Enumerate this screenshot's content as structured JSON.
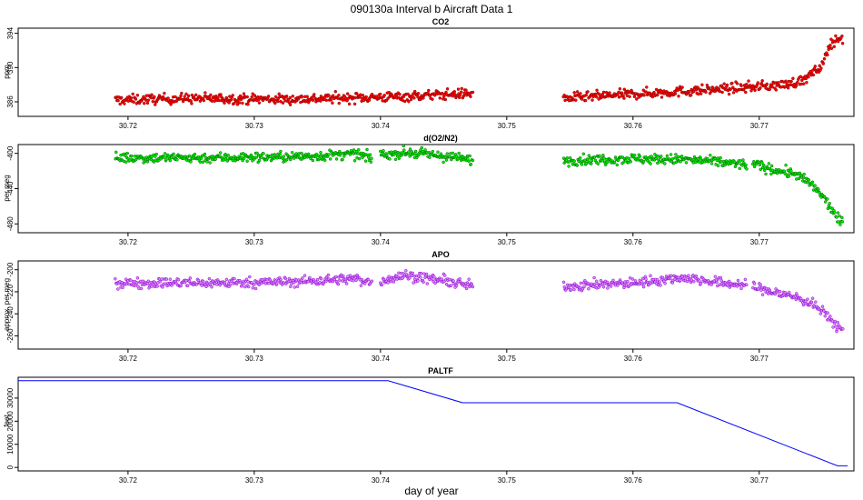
{
  "figure": {
    "title": "090130a   Interval b Aircraft Data 1",
    "xlabel": "day of year",
    "xlim": [
      30.7113,
      30.7775
    ],
    "x_ticks": [
      "30.72",
      "30.73",
      "30.74",
      "30.75",
      "30.76",
      "30.77"
    ]
  },
  "chart_data": [
    {
      "type": "scatter",
      "title": "CO2",
      "ylabel": "ppm",
      "ylim": [
        384.3,
        394.6
      ],
      "y_ticks": [
        "386",
        "390",
        "394"
      ],
      "grid": false,
      "style": {
        "fill": "#ff0000",
        "edge": "#8b0000"
      },
      "segments": [
        {
          "x": [
            30.719,
            30.7247,
            30.7325,
            30.7415,
            30.7473
          ],
          "y": [
            386.2,
            386.4,
            386.3,
            386.6,
            387.0
          ]
        },
        {
          "x": [
            30.7545,
            30.76,
            30.765,
            30.769,
            30.772,
            30.7735,
            30.775,
            30.7755,
            30.7762,
            30.7766
          ],
          "y": [
            386.4,
            386.9,
            387.3,
            387.7,
            388.0,
            388.5,
            390.2,
            392.5,
            393.5,
            393.2
          ]
        }
      ]
    },
    {
      "type": "scatter",
      "title": "d(O2/N2)",
      "ylabel": "per meg",
      "ylim": [
        -490,
        -390
      ],
      "y_ticks": [
        "-400",
        "-440",
        "-480"
      ],
      "grid": false,
      "style": {
        "fill": "#00ee00",
        "edge": "#006400"
      },
      "segments": [
        {
          "x": [
            30.719,
            30.726,
            30.733,
            30.738,
            30.7393
          ],
          "y": [
            -405,
            -405,
            -404,
            -401,
            -405
          ]
        },
        {
          "x": [
            30.74,
            30.742,
            30.745,
            30.7473
          ],
          "y": [
            -402,
            -399,
            -403,
            -408
          ]
        },
        {
          "x": [
            30.7545,
            30.76,
            30.764,
            30.767,
            30.769
          ],
          "y": [
            -408,
            -406,
            -407,
            -410,
            -413
          ]
        },
        {
          "x": [
            30.7695,
            30.771,
            30.773,
            30.7745,
            30.7755,
            30.7762,
            30.7766
          ],
          "y": [
            -412,
            -418,
            -424,
            -440,
            -458,
            -475,
            -478
          ]
        }
      ]
    },
    {
      "type": "scatter",
      "title": "APO",
      "ylabel": "approx. per meg",
      "ylim": [
        -272,
        -192
      ],
      "y_ticks": [
        "-200",
        "-220",
        "-240",
        "-260"
      ],
      "grid": false,
      "style": {
        "fill": "#dd88ff",
        "edge": "#8800cc"
      },
      "segments": [
        {
          "x": [
            30.719,
            30.726,
            30.733,
            30.738,
            30.7393
          ],
          "y": [
            -212,
            -212,
            -211,
            -208,
            -212
          ]
        },
        {
          "x": [
            30.74,
            30.742,
            30.745,
            30.7473
          ],
          "y": [
            -210,
            -205,
            -210,
            -215
          ]
        },
        {
          "x": [
            30.7545,
            30.76,
            30.764,
            30.767,
            30.769
          ],
          "y": [
            -215,
            -212,
            -207,
            -212,
            -214
          ]
        },
        {
          "x": [
            30.7695,
            30.771,
            30.773,
            30.7745,
            30.7755,
            30.7762,
            30.7766
          ],
          "y": [
            -215,
            -220,
            -225,
            -233,
            -243,
            -252,
            -254
          ]
        }
      ]
    },
    {
      "type": "line",
      "title": "PALTF",
      "ylabel": "feet",
      "ylim": [
        -1500,
        39000
      ],
      "y_ticks": [
        "0",
        "10000",
        "20000",
        "30000"
      ],
      "grid": false,
      "style": {
        "line": "#0000ff"
      },
      "x": [
        30.7113,
        30.7406,
        30.7465,
        30.7635,
        30.7762,
        30.777
      ],
      "y": [
        37500,
        37500,
        28000,
        28000,
        700,
        700
      ]
    }
  ]
}
